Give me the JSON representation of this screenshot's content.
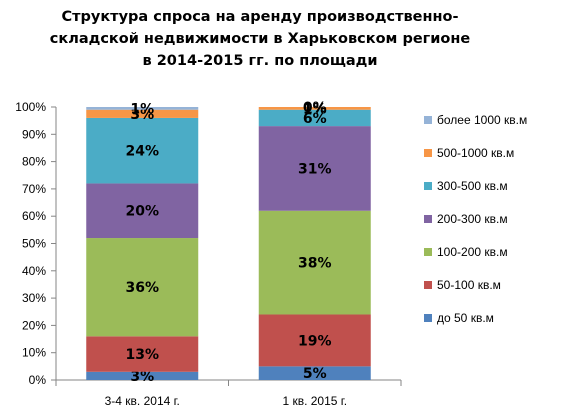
{
  "chart_data": {
    "type": "stacked-bar-100",
    "title_lines": [
      "Структура спроса на аренду  производственно-",
      "складской недвижимости в Харьковском регионе",
      "в 2014-2015 гг. по площади"
    ],
    "categories": [
      "3-4 кв. 2014 г.",
      "1 кв. 2015 г."
    ],
    "yticks": [
      "0%",
      "10%",
      "20%",
      "30%",
      "40%",
      "50%",
      "60%",
      "70%",
      "80%",
      "90%",
      "100%"
    ],
    "ylim": [
      0,
      100
    ],
    "legend_position": "right",
    "series": [
      {
        "name": "до 50 кв.м",
        "color": "#4f81bd",
        "values": [
          3,
          5
        ],
        "labels": [
          "3%",
          "5%"
        ]
      },
      {
        "name": "50-100 кв.м",
        "color": "#c0504d",
        "values": [
          13,
          19
        ],
        "labels": [
          "13%",
          "19%"
        ]
      },
      {
        "name": "100-200 кв.м",
        "color": "#9bbb59",
        "values": [
          36,
          38
        ],
        "labels": [
          "36%",
          "38%"
        ]
      },
      {
        "name": "200-300 кв.м",
        "color": "#8064a2",
        "values": [
          20,
          31
        ],
        "labels": [
          "20%",
          "31%"
        ]
      },
      {
        "name": "300-500 кв.м",
        "color": "#4bacc6",
        "values": [
          24,
          6
        ],
        "labels": [
          "24%",
          "6%"
        ]
      },
      {
        "name": "500-1000 кв.м",
        "color": "#f79646",
        "values": [
          3,
          1
        ],
        "labels": [
          "3%",
          "1%"
        ]
      },
      {
        "name": "более 1000 кв.м",
        "color": "#95b3d7",
        "values": [
          1,
          0
        ],
        "labels": [
          "1%",
          "0%"
        ]
      }
    ]
  }
}
